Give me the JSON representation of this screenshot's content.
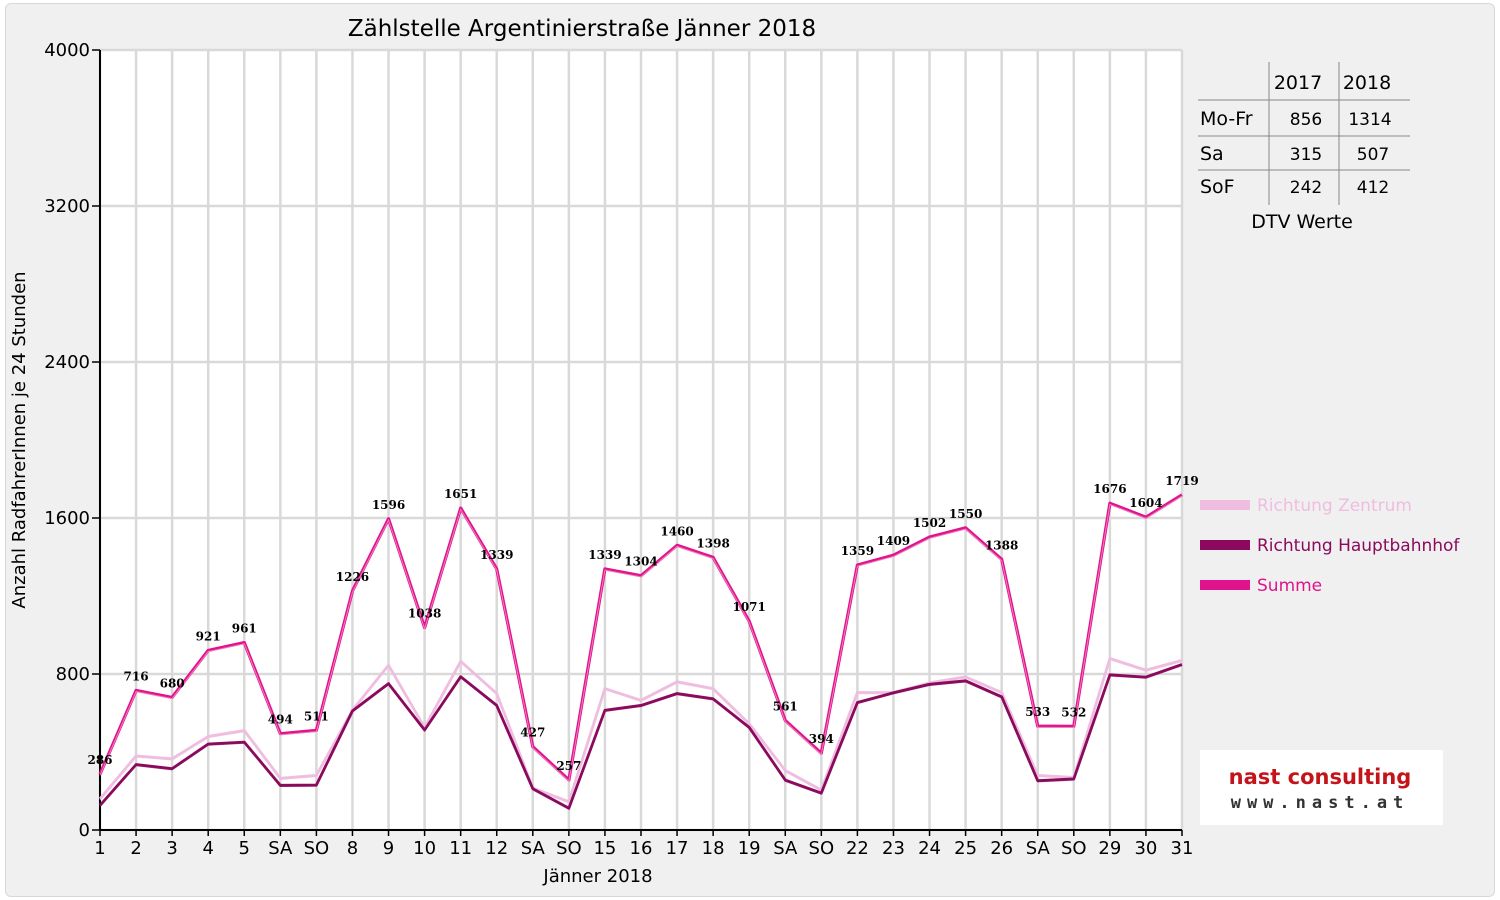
{
  "chart_data": {
    "type": "line",
    "title": "Zählstelle Argentinierstraße Jänner 2018",
    "xlabel": "Jänner 2018",
    "ylabel": "Anzahl RadfahrerInnen je 24 Stunden",
    "ylim": [
      0,
      4000
    ],
    "yticks": [
      "0",
      "800",
      "1600",
      "2400",
      "3200",
      "4000"
    ],
    "grid": true,
    "legend_position": "right",
    "categories": [
      "1",
      "2",
      "3",
      "4",
      "5",
      "SA",
      "SO",
      "8",
      "9",
      "10",
      "11",
      "12",
      "SA",
      "SO",
      "15",
      "16",
      "17",
      "18",
      "19",
      "SA",
      "SO",
      "22",
      "23",
      "24",
      "25",
      "26",
      "SA",
      "SO",
      "29",
      "30",
      "31"
    ],
    "red_categories": [
      0,
      6,
      13,
      20,
      27
    ],
    "series": [
      {
        "name": "Richtung Zentrum",
        "color": "#efbde0",
        "values": [
          160,
          380,
          365,
          480,
          510,
          265,
          280,
          615,
          845,
          525,
          865,
          700,
          215,
          145,
          725,
          665,
          760,
          725,
          545,
          305,
          205,
          705,
          705,
          755,
          785,
          705,
          280,
          270,
          880,
          820,
          870
        ]
      },
      {
        "name": "Richtung Hauptbahnhof",
        "color": "#8b0a5e",
        "values": [
          126,
          336,
          315,
          441,
          451,
          229,
          231,
          611,
          751,
          513,
          786,
          639,
          212,
          112,
          614,
          639,
          700,
          673,
          526,
          256,
          189,
          654,
          704,
          747,
          765,
          683,
          253,
          262,
          796,
          784,
          849
        ]
      },
      {
        "name": "Summe",
        "color": "#e0138c",
        "values": [
          286,
          716,
          680,
          921,
          961,
          494,
          511,
          1226,
          1596,
          1038,
          1651,
          1339,
          427,
          257,
          1339,
          1304,
          1460,
          1398,
          1071,
          561,
          394,
          1359,
          1409,
          1502,
          1550,
          1388,
          533,
          532,
          1676,
          1604,
          1719
        ]
      }
    ]
  },
  "dtv_table": {
    "caption": "DTV Werte",
    "headers": [
      "",
      "2017",
      "2018"
    ],
    "rows": [
      {
        "label": "Mo-Fr",
        "v2017": "856",
        "v2018": "1314"
      },
      {
        "label": "Sa",
        "v2017": "315",
        "v2018": "507"
      },
      {
        "label": "SoF",
        "v2017": "242",
        "v2018": "412"
      }
    ]
  },
  "logo": {
    "brand": "nast consulting",
    "url": "www.nast.at"
  }
}
